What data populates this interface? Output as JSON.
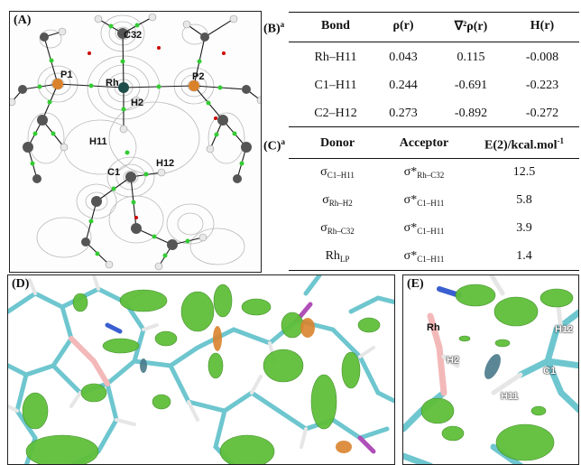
{
  "panelA": {
    "label": "(A)",
    "atoms": {
      "c32": "C32",
      "p1": "P1",
      "p2": "P2",
      "rh": "Rh",
      "h2": "H2",
      "h11": "H11",
      "c1": "C1",
      "h12": "H12"
    }
  },
  "panelB": {
    "label": "(B)",
    "note": "a",
    "headers": [
      "Bond",
      "ρ(r)",
      "∇²ρ(r)",
      "H(r)"
    ],
    "rows": [
      [
        "Rh–H11",
        "0.043",
        "0.115",
        "-0.008"
      ],
      [
        "C1–H11",
        "0.244",
        "-0.691",
        "-0.223"
      ],
      [
        "C2–H12",
        "0.273",
        "-0.892",
        "-0.272"
      ]
    ]
  },
  "panelC": {
    "label": "(C)",
    "note": "a",
    "headers": {
      "donor": "Donor",
      "acceptor": "Acceptor",
      "e2": "E(2)/kcal.mol",
      "e2_sup": "-1"
    },
    "rows": [
      {
        "donor": "σ",
        "donor_sub": "C1–H11",
        "acceptor": "σ*",
        "acceptor_sub": "Rh–C32",
        "value": "12.5"
      },
      {
        "donor": "σ",
        "donor_sub": "Rh–H2",
        "acceptor": "σ*",
        "acceptor_sub": "C1–H11",
        "value": "5.8"
      },
      {
        "donor": "σ",
        "donor_sub": "Rh–C32",
        "acceptor": "σ*",
        "acceptor_sub": "C1–H11",
        "value": "3.9"
      },
      {
        "donor": "Rh",
        "donor_sub": "LP",
        "acceptor": "σ*",
        "acceptor_sub": "C1–H11",
        "value": "1.4"
      }
    ]
  },
  "panelD": {
    "label": "(D)"
  },
  "panelE": {
    "label": "(E)",
    "atoms": {
      "rh": "Rh",
      "h2": "H2",
      "h11": "H11",
      "c1": "C1",
      "h12": "H12"
    }
  },
  "colors": {
    "bond_path": "#222222",
    "critical_point": "#33cc33",
    "ring_point": "#cc0000",
    "surface_green": "#5fbf3a",
    "stick_cyan": "#6ec6cf"
  }
}
